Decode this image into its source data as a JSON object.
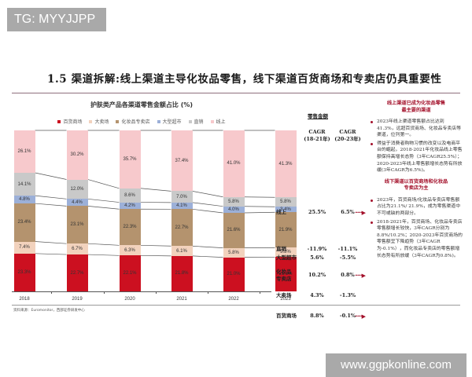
{
  "watermarks": {
    "top": "TG: MYYJJPP",
    "bottom": "www.ggpkonline.com"
  },
  "page": {
    "title": "1.5 渠道拆解:线上渠道主导化妆品零售，线下渠道百货商场和专卖店仍具重要性"
  },
  "colors": {
    "dept_store": "#cc1020",
    "hypermarket_big": "#f2d2bd",
    "beauty_specialist": "#b4936e",
    "hypermarket": "#9cb0d8",
    "direct": "#c9c9c9",
    "online": "#f7c9cc",
    "accent": "#a3102a"
  },
  "chart_data": {
    "type": "bar",
    "stacked": true,
    "title": "护肤类产品各渠道零售金额占比 (%)",
    "xlabel": "",
    "ylabel": "",
    "ylim": [
      0,
      100
    ],
    "legend_position": "top",
    "categories": [
      "2018",
      "2019",
      "2020",
      "2021",
      "2022",
      "2023"
    ],
    "series": [
      {
        "name": "百货商场",
        "color": "#cc1020",
        "values": [
          23.3,
          22.7,
          22.1,
          21.8,
          21.0,
          21.1
        ]
      },
      {
        "name": "大卖场",
        "color": "#f2d2bd",
        "values": [
          7.4,
          6.7,
          6.3,
          6.1,
          5.8,
          5.8
        ]
      },
      {
        "name": "化妆品专卖店",
        "color": "#b4936e",
        "values": [
          23.4,
          23.1,
          22.3,
          22.7,
          21.6,
          21.9
        ]
      },
      {
        "name": "大型超市",
        "color": "#9cb0d8",
        "values": [
          4.8,
          4.4,
          4.2,
          4.1,
          4.0,
          3.4
        ]
      },
      {
        "name": "直销",
        "color": "#c9c9c9",
        "values": [
          14.1,
          12.0,
          8.6,
          7.0,
          5.8,
          5.8
        ]
      },
      {
        "name": "线上",
        "color": "#f7c9cc",
        "values": [
          26.1,
          30.2,
          35.7,
          37.4,
          41.0,
          41.3
        ]
      }
    ]
  },
  "table": {
    "header": "零售金额",
    "col1": "CAGR\n(18-21年)",
    "col1_a": "CAGR",
    "col1_b": "(18-21年)",
    "col2_a": "CAGR",
    "col2_b": "(20-23年)",
    "rows": [
      {
        "label": "线上",
        "label2": "",
        "c1": "25.5%",
        "c2": "6.5%",
        "arrow": true
      },
      {
        "label": "直销",
        "label2": "",
        "c1": "-11.9%",
        "c2": "-11.1%",
        "arrow": false
      },
      {
        "label": "大型超市",
        "label2": "",
        "c1": "5.6%",
        "c2": "-5.5%",
        "arrow": false
      },
      {
        "label": "化妆品",
        "label2": "专卖店",
        "c1": "10.2%",
        "c2": "0.8%",
        "arrow": true
      },
      {
        "label": "大卖场",
        "label2": "",
        "c1": "4.3%",
        "c2": "-1.3%",
        "arrow": false
      },
      {
        "label": "百货商场",
        "label2": "",
        "c1": "8.8%",
        "c2": "-0.1%",
        "arrow": true
      }
    ],
    "arrow_glyph": "······▶"
  },
  "notes": {
    "online": {
      "head1": "线上渠道已成为化妆品零售",
      "head2": "最主要的渠道",
      "bullets": [
        "2023年线上渠道零售额占比达到41.3%，远超百货商场、化妆品专卖店等渠道，位列第一。",
        "得益于消费者购物习惯的改变以及电商平台的崛起，2018-2021年化妆品线上零售额保持高增长态势（3年CAGR25.5%）；2020-2023年线上零售额增长态势有所放缓(3年CAGR为6.5%)。"
      ]
    },
    "offline": {
      "head1": "线下渠道以百货商场和化妆品",
      "head2": "专卖店为主",
      "bullets": [
        "2023年，百货商场/化妆品专卖店零售额占比为21.1%/ 21.9%，成为零售渠道中不可或缺的两部分。",
        "2018-2021年，百货商场、化妆品专卖店零售额增长较快，3年CAGR分别为8.8%/10.2%；2020-2023年百货商场的零售额呈下降趋势（3年CAGR 为-0.1%），而化妆品专卖店的零售额增长态势有所放缓（3年CAGR为0.8%)。"
      ]
    }
  },
  "source": "资料来源：Euromonitor，西部证券研发中心"
}
